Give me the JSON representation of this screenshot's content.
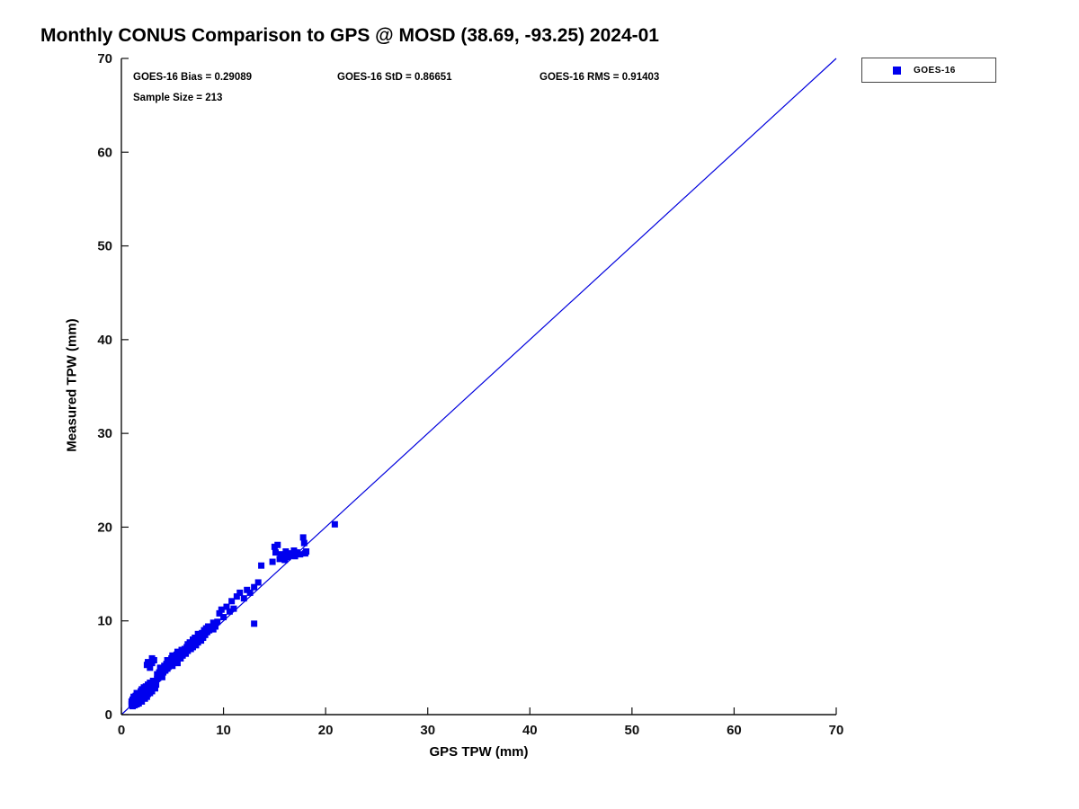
{
  "title": "Monthly CONUS Comparison to GPS @ MOSD (38.69, -93.25) 2024-01",
  "annotations": {
    "bias": "GOES-16 Bias = 0.29089",
    "std": "GOES-16 StD = 0.86651",
    "rms": "GOES-16 RMS = 0.91403",
    "sample_size": "Sample Size = 213"
  },
  "legend": {
    "entries": [
      {
        "label": "GOES-16",
        "marker_color": "#0000ee"
      }
    ]
  },
  "chart_data": {
    "type": "scatter",
    "title": "Monthly CONUS Comparison to GPS @ MOSD (38.69, -93.25) 2024-01",
    "xlabel": "GPS TPW (mm)",
    "ylabel": "Measured TPW (mm)",
    "xlim": [
      0,
      70
    ],
    "ylim": [
      0,
      70
    ],
    "xticks": [
      0,
      10,
      20,
      30,
      40,
      50,
      60,
      70
    ],
    "yticks": [
      0,
      10,
      20,
      30,
      40,
      50,
      60,
      70
    ],
    "grid": false,
    "legend_position": "top-right",
    "marker_color": "#0000ee",
    "marker_shape": "square",
    "identity_line": {
      "from": [
        0,
        0
      ],
      "to": [
        70,
        70
      ],
      "color": "#0000dd"
    },
    "stats": {
      "bias": 0.29089,
      "std": 0.86651,
      "rms": 0.91403,
      "sample_size": 213
    },
    "series": [
      {
        "name": "GOES-16",
        "points": [
          [
            1.0,
            1.1
          ],
          [
            1.0,
            1.4
          ],
          [
            1.1,
            0.9
          ],
          [
            1.1,
            1.6
          ],
          [
            1.2,
            1.2
          ],
          [
            1.2,
            1.9
          ],
          [
            1.3,
            1.0
          ],
          [
            1.3,
            1.5
          ],
          [
            1.4,
            1.3
          ],
          [
            1.4,
            2.0
          ],
          [
            1.5,
            1.1
          ],
          [
            1.5,
            1.7
          ],
          [
            1.5,
            2.3
          ],
          [
            1.6,
            1.4
          ],
          [
            1.6,
            2.0
          ],
          [
            1.7,
            1.2
          ],
          [
            1.7,
            1.8
          ],
          [
            1.8,
            1.5
          ],
          [
            1.8,
            2.2
          ],
          [
            1.9,
            1.7
          ],
          [
            1.9,
            2.5
          ],
          [
            2.0,
            1.4
          ],
          [
            2.0,
            2.0
          ],
          [
            2.0,
            2.7
          ],
          [
            2.1,
            1.8
          ],
          [
            2.1,
            2.3
          ],
          [
            2.2,
            2.0
          ],
          [
            2.2,
            2.9
          ],
          [
            2.3,
            1.7
          ],
          [
            2.3,
            2.4
          ],
          [
            2.4,
            2.1
          ],
          [
            2.4,
            3.0
          ],
          [
            2.5,
            1.9
          ],
          [
            2.5,
            2.6
          ],
          [
            2.6,
            2.2
          ],
          [
            2.6,
            3.2
          ],
          [
            2.7,
            2.5
          ],
          [
            2.7,
            3.0
          ],
          [
            2.8,
            2.3
          ],
          [
            2.8,
            3.4
          ],
          [
            2.9,
            2.8
          ],
          [
            3.0,
            2.5
          ],
          [
            3.0,
            3.2
          ],
          [
            3.1,
            2.9
          ],
          [
            3.1,
            3.6
          ],
          [
            3.2,
            3.1
          ],
          [
            3.3,
            2.8
          ],
          [
            3.3,
            3.5
          ],
          [
            3.4,
            3.2
          ],
          [
            3.5,
            3.8
          ],
          [
            2.5,
            5.3
          ],
          [
            2.6,
            5.6
          ],
          [
            2.8,
            5.0
          ],
          [
            3.0,
            5.5
          ],
          [
            3.0,
            6.0
          ],
          [
            3.2,
            5.8
          ],
          [
            3.5,
            4.3
          ],
          [
            3.6,
            3.9
          ],
          [
            3.7,
            4.5
          ],
          [
            3.8,
            4.1
          ],
          [
            3.8,
            5.0
          ],
          [
            3.9,
            4.4
          ],
          [
            4.0,
            4.0
          ],
          [
            4.0,
            4.8
          ],
          [
            4.1,
            4.5
          ],
          [
            4.2,
            5.2
          ],
          [
            4.3,
            4.7
          ],
          [
            4.4,
            5.4
          ],
          [
            4.5,
            4.9
          ],
          [
            4.5,
            5.8
          ],
          [
            4.6,
            5.1
          ],
          [
            4.7,
            5.6
          ],
          [
            4.8,
            5.3
          ],
          [
            4.9,
            6.0
          ],
          [
            5.0,
            5.2
          ],
          [
            5.0,
            6.3
          ],
          [
            5.1,
            5.6
          ],
          [
            5.2,
            6.1
          ],
          [
            5.3,
            5.8
          ],
          [
            5.4,
            6.4
          ],
          [
            5.5,
            5.5
          ],
          [
            5.5,
            6.7
          ],
          [
            5.6,
            6.2
          ],
          [
            5.7,
            6.6
          ],
          [
            5.8,
            6.0
          ],
          [
            5.9,
            6.9
          ],
          [
            6.0,
            6.3
          ],
          [
            6.1,
            6.7
          ],
          [
            6.2,
            7.0
          ],
          [
            6.3,
            6.5
          ],
          [
            6.4,
            7.2
          ],
          [
            6.5,
            6.8
          ],
          [
            6.5,
            7.5
          ],
          [
            6.6,
            7.1
          ],
          [
            6.7,
            7.7
          ],
          [
            6.8,
            7.0
          ],
          [
            6.9,
            7.4
          ],
          [
            7.0,
            7.2
          ],
          [
            7.0,
            8.0
          ],
          [
            7.1,
            7.6
          ],
          [
            7.2,
            8.2
          ],
          [
            7.3,
            7.4
          ],
          [
            7.4,
            8.0
          ],
          [
            7.5,
            7.7
          ],
          [
            7.5,
            8.6
          ],
          [
            7.6,
            8.1
          ],
          [
            7.7,
            8.4
          ],
          [
            7.8,
            7.9
          ],
          [
            7.9,
            8.7
          ],
          [
            8.0,
            8.2
          ],
          [
            8.1,
            9.0
          ],
          [
            8.2,
            8.5
          ],
          [
            8.3,
            9.2
          ],
          [
            8.4,
            8.8
          ],
          [
            8.5,
            9.4
          ],
          [
            8.6,
            9.0
          ],
          [
            8.8,
            9.3
          ],
          [
            9.0,
            9.1
          ],
          [
            9.0,
            9.8
          ],
          [
            9.2,
            9.4
          ],
          [
            9.4,
            9.9
          ],
          [
            9.6,
            10.8
          ],
          [
            9.8,
            11.2
          ],
          [
            10.0,
            10.4
          ],
          [
            10.3,
            11.5
          ],
          [
            10.6,
            11.0
          ],
          [
            10.8,
            12.1
          ],
          [
            11.0,
            11.3
          ],
          [
            11.3,
            12.6
          ],
          [
            11.6,
            13.0
          ],
          [
            12.0,
            12.4
          ],
          [
            12.3,
            13.3
          ],
          [
            12.6,
            13.0
          ],
          [
            13.0,
            13.6
          ],
          [
            13.0,
            9.7
          ],
          [
            13.4,
            14.1
          ],
          [
            13.7,
            15.9
          ],
          [
            14.8,
            16.3
          ],
          [
            15.0,
            17.9
          ],
          [
            15.1,
            17.3
          ],
          [
            15.3,
            18.1
          ],
          [
            15.5,
            16.6
          ],
          [
            15.6,
            17.1
          ],
          [
            15.8,
            16.9
          ],
          [
            16.0,
            16.5
          ],
          [
            16.1,
            17.4
          ],
          [
            16.3,
            16.8
          ],
          [
            16.5,
            17.2
          ],
          [
            16.7,
            17.0
          ],
          [
            16.9,
            17.5
          ],
          [
            17.0,
            16.9
          ],
          [
            17.2,
            17.3
          ],
          [
            17.5,
            17.1
          ],
          [
            17.8,
            18.9
          ],
          [
            17.9,
            18.3
          ],
          [
            18.0,
            17.2
          ],
          [
            18.1,
            17.4
          ],
          [
            20.9,
            20.3
          ]
        ]
      }
    ]
  }
}
